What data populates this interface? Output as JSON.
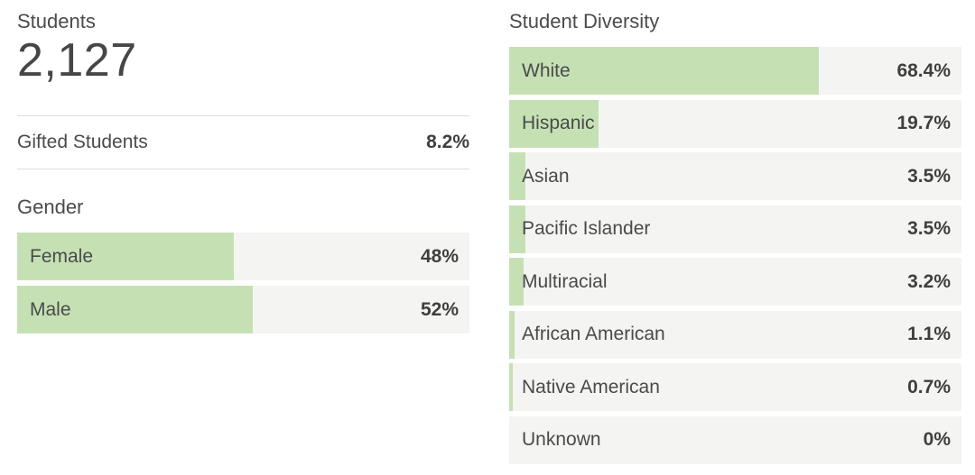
{
  "colors": {
    "page_bg": "#ffffff",
    "bar_fill": "#c5e1b4",
    "bar_bg": "#f4f4f3",
    "text": "#4b4b4b",
    "value_text": "#3f3f3f",
    "divider": "#dcdcdc"
  },
  "left_panel": {
    "students_label": "Students",
    "students_count": "2,127",
    "gifted_label": "Gifted Students",
    "gifted_value": "8.2%"
  },
  "chart_data": [
    {
      "type": "bar",
      "orientation": "horizontal",
      "title": "Gender",
      "categories": [
        "Female",
        "Male"
      ],
      "values": [
        48,
        52
      ],
      "value_labels": [
        "48%",
        "52%"
      ],
      "xlim": [
        0,
        100
      ],
      "grid": false,
      "legend": false,
      "bar_color": "#c5e1b4",
      "track_color": "#f4f4f3"
    },
    {
      "type": "bar",
      "orientation": "horizontal",
      "title": "Student Diversity",
      "categories": [
        "White",
        "Hispanic",
        "Asian",
        "Pacific Islander",
        "Multiracial",
        "African American",
        "Native American",
        "Unknown"
      ],
      "values": [
        68.4,
        19.7,
        3.5,
        3.5,
        3.2,
        1.1,
        0.7,
        0
      ],
      "value_labels": [
        "68.4%",
        "19.7%",
        "3.5%",
        "3.5%",
        "3.2%",
        "1.1%",
        "0.7%",
        "0%"
      ],
      "xlim": [
        0,
        100
      ],
      "grid": false,
      "legend": false,
      "bar_color": "#c5e1b4",
      "track_color": "#f4f4f3"
    }
  ]
}
